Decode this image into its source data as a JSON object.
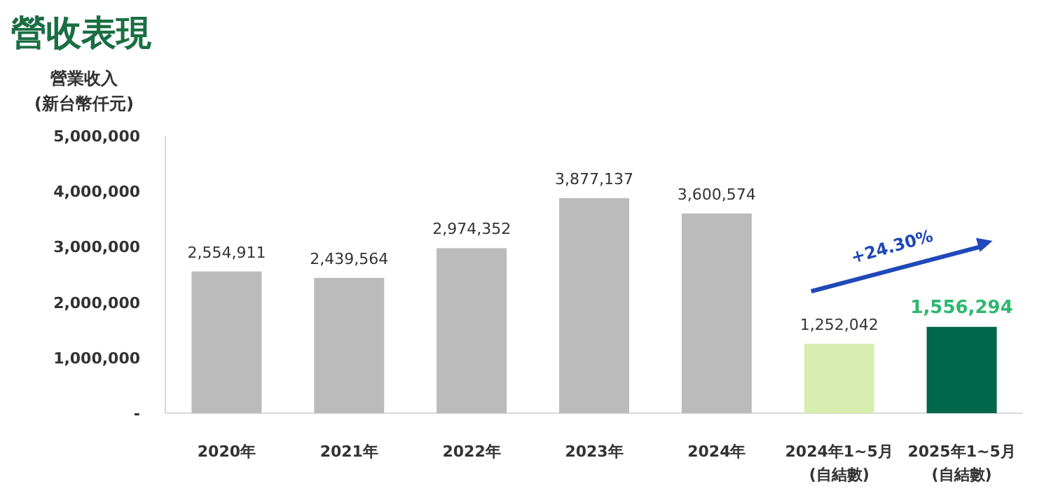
{
  "chart_data": {
    "type": "bar",
    "title": "營收表現",
    "ylabel": "營業收入\n(新台幣仟元)",
    "categories": [
      "2020年",
      "2021年",
      "2022年",
      "2023年",
      "2024年",
      "2024年1~5月\n(自結數)",
      "2025年1~5月\n(自結數)"
    ],
    "values": [
      2554911,
      2439564,
      2974352,
      3877137,
      3600574,
      1252042,
      1556294
    ],
    "value_labels": [
      "2,554,911",
      "2,439,564",
      "2,974,352",
      "3,877,137",
      "3,600,574",
      "1,252,042",
      "1,556,294"
    ],
    "colors": [
      "#bbbbbb",
      "#bbbbbb",
      "#bbbbbb",
      "#bbbbbb",
      "#bbbbbb",
      "#d8edb0",
      "#00674a"
    ],
    "ylim": [
      0,
      5000000
    ],
    "yticks": [
      {
        "value": 0,
        "label": "-"
      },
      {
        "value": 1000000,
        "label": "1,000,000"
      },
      {
        "value": 2000000,
        "label": "2,000,000"
      },
      {
        "value": 3000000,
        "label": "3,000,000"
      },
      {
        "value": 4000000,
        "label": "4,000,000"
      },
      {
        "value": 5000000,
        "label": "5,000,000"
      }
    ],
    "annotations": [
      "+24.30%"
    ]
  }
}
